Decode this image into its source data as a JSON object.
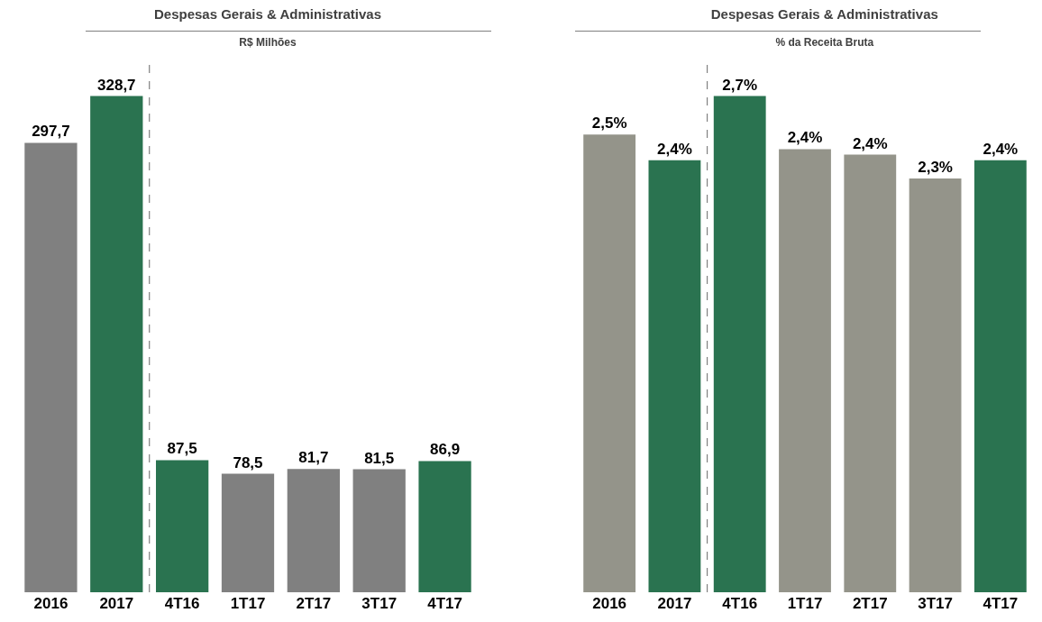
{
  "chart_data": [
    {
      "type": "bar",
      "title": "Despesas Gerais & Administrativas",
      "subtitle": "R$ Milhões",
      "categories": [
        "2016",
        "2017",
        "4T16",
        "1T17",
        "2T17",
        "3T17",
        "4T17"
      ],
      "values": [
        297.7,
        328.7,
        87.5,
        78.5,
        81.7,
        81.5,
        86.9
      ],
      "colors": [
        "#808080",
        "#2a7350",
        "#2a7350",
        "#808080",
        "#808080",
        "#808080",
        "#2a7350"
      ],
      "value_labels": [
        "297,7",
        "328,7",
        "87,5",
        "78,5",
        "81,7",
        "81,5",
        "86,9"
      ]
    },
    {
      "type": "bar",
      "title": "Despesas Gerais & Administrativas",
      "subtitle": "% da Receita Bruta",
      "categories": [
        "2016",
        "2017",
        "4T16",
        "1T17",
        "2T17",
        "3T17",
        "4T17"
      ],
      "values": [
        2.5,
        2.36,
        2.71,
        2.42,
        2.39,
        2.26,
        2.36
      ],
      "colors": [
        "#94948a",
        "#2a7350",
        "#2a7350",
        "#94948a",
        "#94948a",
        "#94948a",
        "#2a7350"
      ],
      "value_labels": [
        "2,5%",
        "2,4%",
        "2,7%",
        "2,4%",
        "2,4%",
        "2,3%",
        "2,4%"
      ]
    }
  ]
}
